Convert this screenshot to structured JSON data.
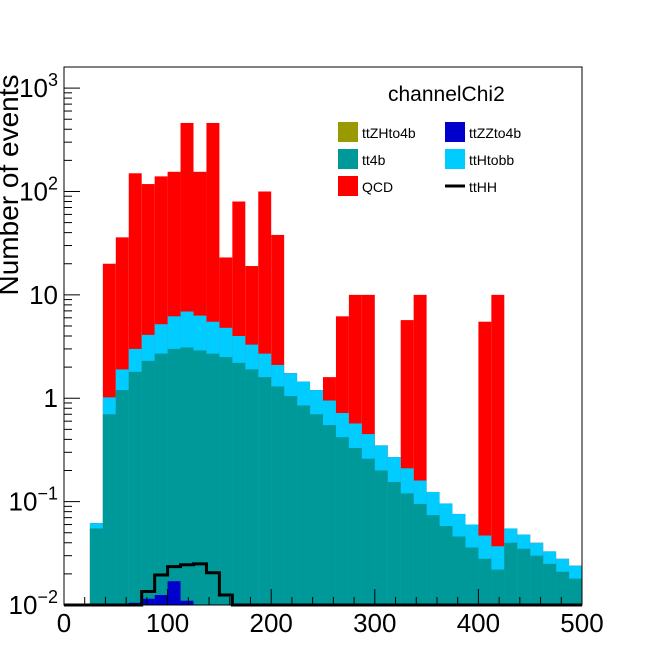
{
  "chart_data": {
    "type": "bar",
    "title": "channelChi2",
    "xlabel": "",
    "ylabel": "Number of events",
    "xlim": [
      0,
      500
    ],
    "ylim": [
      0.01,
      1600
    ],
    "ylog": true,
    "stacked": true,
    "bin_width": 12.5,
    "x_ticks": [
      "0",
      "100",
      "200",
      "300",
      "400",
      "500"
    ],
    "x_tick_values": [
      0,
      100,
      200,
      300,
      400,
      500
    ],
    "y_ticks": [
      {
        "value": 0.01,
        "base": "10",
        "exp": "−2",
        "text": ""
      },
      {
        "value": 0.1,
        "base": "10",
        "exp": "−1",
        "text": ""
      },
      {
        "value": 1,
        "base": "",
        "exp": "",
        "text": "1"
      },
      {
        "value": 10,
        "base": "",
        "exp": "",
        "text": "10"
      },
      {
        "value": 100,
        "base": "10",
        "exp": "2",
        "text": ""
      },
      {
        "value": 1000,
        "base": "10",
        "exp": "3",
        "text": ""
      }
    ],
    "stack_edges": [
      25,
      37.5,
      50,
      62.5,
      75,
      87.5,
      100,
      112.5,
      125,
      137.5,
      150,
      162.5,
      175,
      187.5,
      200,
      212.5,
      225,
      237.5,
      250,
      262.5,
      275,
      287.5,
      300,
      312.5,
      325,
      337.5,
      350,
      362.5,
      375,
      387.5,
      400,
      412.5,
      425,
      437.5,
      450,
      462.5,
      475,
      487.5,
      500
    ],
    "series": [
      {
        "name": "tt4b",
        "color": "#009999",
        "cumulative": [
          0.055,
          0.7,
          1.2,
          1.8,
          2.3,
          2.7,
          3.0,
          3.1,
          2.9,
          2.7,
          2.5,
          2.2,
          1.9,
          1.6,
          1.3,
          1.05,
          0.85,
          0.7,
          0.55,
          0.42,
          0.33,
          0.26,
          0.2,
          0.155,
          0.12,
          0.095,
          0.074,
          0.058,
          0.046,
          0.036,
          0.028,
          0.022,
          0.04,
          0.035,
          0.03,
          0.025,
          0.021,
          0.018
        ]
      },
      {
        "name": "ttHtobb",
        "color": "#00ccff",
        "cumulative": [
          0.062,
          1.02,
          1.9,
          3.0,
          4.1,
          5.2,
          6.2,
          6.9,
          6.3,
          5.5,
          4.8,
          4.0,
          3.3,
          2.7,
          2.1,
          1.75,
          1.45,
          1.2,
          0.95,
          0.72,
          0.57,
          0.45,
          0.35,
          0.27,
          0.21,
          0.16,
          0.124,
          0.096,
          0.076,
          0.06,
          0.047,
          0.037,
          0.055,
          0.048,
          0.04,
          0.033,
          0.028,
          0.024
        ]
      },
      {
        "name": "QCD",
        "color": "#ff0000",
        "cumulative": [
          0.062,
          20,
          36,
          150,
          118,
          140,
          155,
          460,
          155,
          460,
          23,
          80,
          19,
          100,
          38,
          1.75,
          1.45,
          1.2,
          1.6,
          6.2,
          10,
          10,
          0.35,
          0.27,
          5.7,
          10,
          0.124,
          0.096,
          0.076,
          0.06,
          5.5,
          10,
          0.055,
          0.048,
          0.04,
          0.033,
          0.028,
          0.024
        ]
      }
    ],
    "ttZZto4b": {
      "name": "ttZZto4b",
      "color": "#0000cc",
      "edges": [
        62.5,
        75,
        87.5,
        100,
        112.5,
        125
      ],
      "values": [
        0.0105,
        0.0115,
        0.0125,
        0.017,
        0.011
      ]
    },
    "ttZHto4b": {
      "name": "ttZHto4b",
      "color": "#999900",
      "values": []
    },
    "ttHH": {
      "name": "ttHH",
      "color": "#000000",
      "steps": [
        [
          0,
          0.01
        ],
        [
          62.5,
          0.01
        ],
        [
          75,
          0.0135
        ],
        [
          87.5,
          0.0195
        ],
        [
          100,
          0.0235
        ],
        [
          112.5,
          0.0245
        ],
        [
          125,
          0.025
        ],
        [
          137.5,
          0.0205
        ],
        [
          150,
          0.0125
        ],
        [
          162.5,
          0.01
        ],
        [
          500,
          0.01
        ]
      ]
    },
    "legend_placement": "top-right",
    "legend": [
      {
        "label": "ttZHto4b",
        "color": "#999900",
        "type": "fill"
      },
      {
        "label": "ttZZto4b",
        "color": "#0000cc",
        "type": "fill"
      },
      {
        "label": "tt4b",
        "color": "#009999",
        "type": "fill"
      },
      {
        "label": "ttHtobb",
        "color": "#00ccff",
        "type": "fill"
      },
      {
        "label": "QCD",
        "color": "#ff0000",
        "type": "fill"
      },
      {
        "label": "ttHH",
        "color": "#000000",
        "type": "line"
      }
    ],
    "grid": false
  }
}
